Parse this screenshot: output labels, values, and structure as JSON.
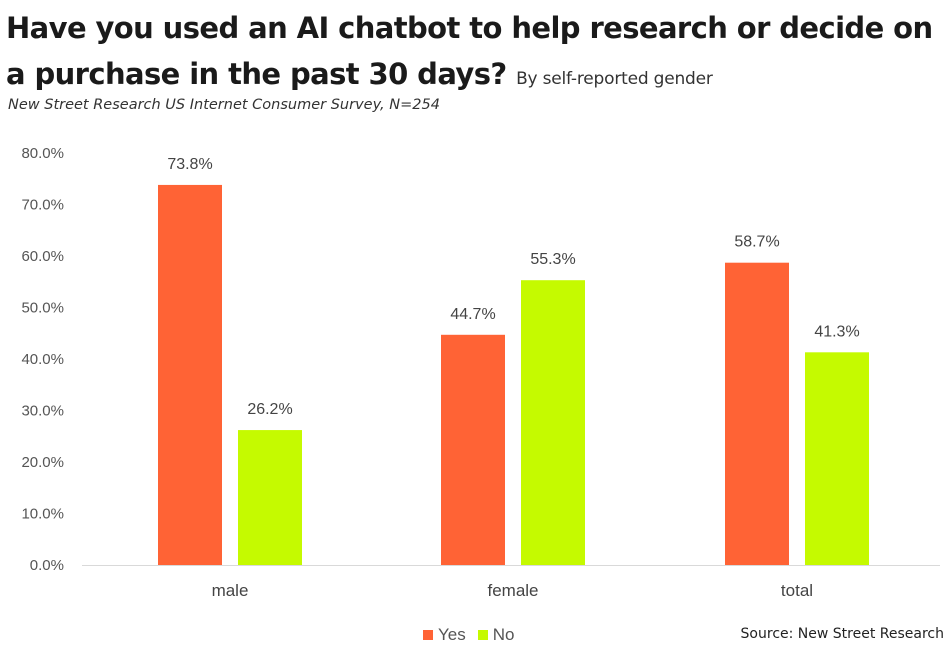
{
  "header": {
    "title_line1": "Have you used an AI chatbot to help research or decide on",
    "title_line2": "a purchase in the past 30 days?",
    "subtitle": "By self-reported gender",
    "survey_note": "New Street Research US Internet Consumer Survey, N=254"
  },
  "footer": {
    "source": "Source: New Street Research"
  },
  "chart_data": {
    "type": "bar",
    "title": "Have you used an AI chatbot to help research or decide on a purchase in the past 30 days?",
    "subtitle": "By self-reported gender",
    "categories": [
      "male",
      "female",
      "total"
    ],
    "series": [
      {
        "name": "Yes",
        "color": "#FF6335",
        "values": [
          73.8,
          44.7,
          58.7
        ],
        "labels": [
          "73.8%",
          "44.7%",
          "58.7%"
        ]
      },
      {
        "name": "No",
        "color": "#C5FA00",
        "values": [
          26.2,
          55.3,
          41.3
        ],
        "labels": [
          "26.2%",
          "55.3%",
          "41.3%"
        ]
      }
    ],
    "ylim": [
      0,
      80
    ],
    "yticks": [
      0,
      10,
      20,
      30,
      40,
      50,
      60,
      70,
      80
    ],
    "ytick_labels": [
      "0.0%",
      "10.0%",
      "20.0%",
      "30.0%",
      "40.0%",
      "50.0%",
      "60.0%",
      "70.0%",
      "80.0%"
    ],
    "xlabel": "",
    "ylabel": "",
    "grid": false,
    "legend_position": "bottom-center"
  }
}
